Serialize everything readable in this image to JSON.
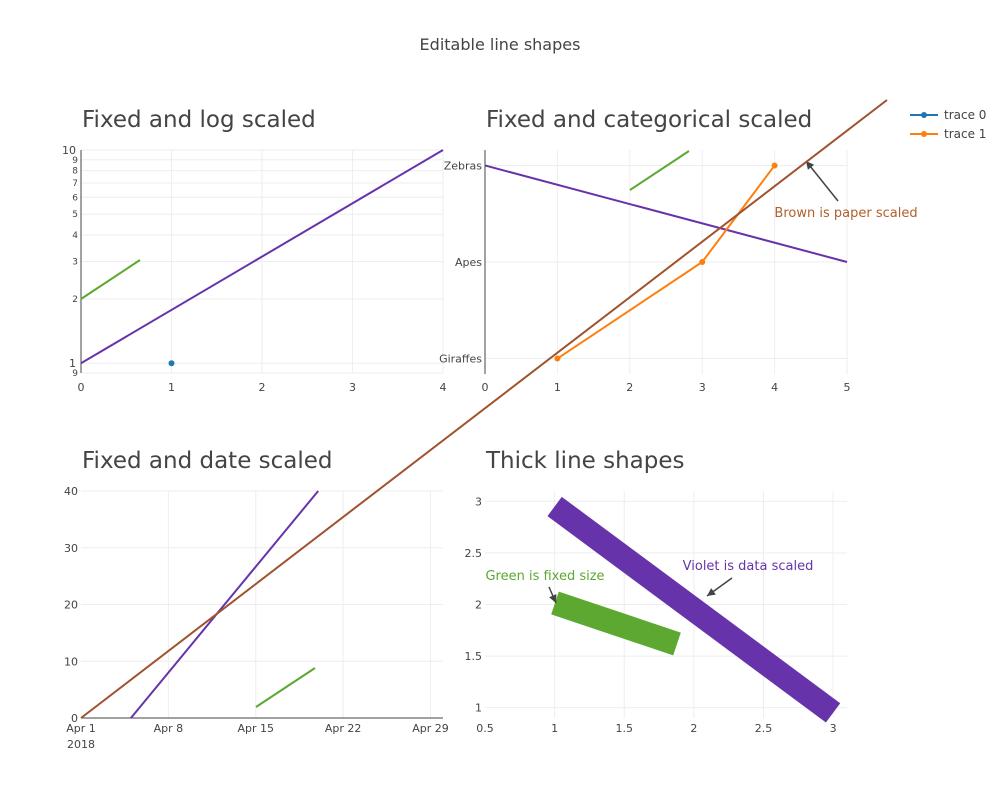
{
  "title": "Editable line shapes",
  "chart_data": [
    {
      "type": "scatter",
      "title": "Fixed and log scaled",
      "x_axis": {
        "type": "linear",
        "range": [
          0,
          4
        ],
        "ticks": [
          "0",
          "1",
          "2",
          "3",
          "4"
        ]
      },
      "y_axis": {
        "type": "log",
        "range": [
          0.9,
          10
        ],
        "major_ticks": [
          "1",
          "10"
        ],
        "minor_ticks": [
          "9",
          "2",
          "3",
          "4",
          "5",
          "6",
          "7",
          "8",
          "9"
        ]
      },
      "series": [
        {
          "points": [
            {
              "x": 1,
              "y": 1
            }
          ]
        }
      ],
      "shapes": [
        {
          "kind": "line",
          "sizing": "fixed",
          "color": "#5ca830"
        },
        {
          "kind": "line",
          "sizing": "data",
          "color": "#6633aa",
          "x0": 0,
          "y0": 1,
          "x1": 4,
          "y1": 10
        }
      ]
    },
    {
      "type": "line",
      "title": "Fixed and categorical scaled",
      "x_axis": {
        "type": "linear",
        "range": [
          0,
          5
        ],
        "ticks": [
          "0",
          "1",
          "2",
          "3",
          "4",
          "5"
        ]
      },
      "y_axis": {
        "type": "category",
        "categories": [
          "Giraffes",
          "Apes",
          "Zebras"
        ]
      },
      "series": [
        {
          "x": [
            1,
            3,
            4
          ],
          "y": [
            "Giraffes",
            "Apes",
            "Zebras"
          ]
        }
      ],
      "shapes": [
        {
          "kind": "line",
          "sizing": "fixed",
          "color": "#5ca830"
        },
        {
          "kind": "line",
          "sizing": "data",
          "color": "#6633aa",
          "x0": 0,
          "y0": "Zebras",
          "x1": 5,
          "y1": "Apes"
        }
      ],
      "annotations": [
        {
          "text": "Brown is paper scaled",
          "color": "#b05f2a"
        }
      ]
    },
    {
      "type": "scatter",
      "title": "Fixed and date scaled",
      "x_axis": {
        "type": "date",
        "range": [
          "2018-04-01",
          "2018-04-30"
        ],
        "ticks": [
          "Apr 1",
          "Apr 8",
          "Apr 15",
          "Apr 22",
          "Apr 29"
        ],
        "year_label": "2018"
      },
      "y_axis": {
        "type": "linear",
        "range": [
          0,
          40
        ],
        "ticks": [
          "0",
          "10",
          "20",
          "30",
          "40"
        ]
      },
      "shapes": [
        {
          "kind": "line",
          "sizing": "fixed",
          "color": "#5ca830"
        },
        {
          "kind": "line",
          "sizing": "data",
          "color": "#6633aa",
          "x0": "2018-04-05",
          "y0": 0,
          "x1": "2018-04-20",
          "y1": 40
        }
      ]
    },
    {
      "type": "scatter",
      "title": "Thick line shapes",
      "x_axis": {
        "type": "linear",
        "range": [
          0.5,
          3.1
        ],
        "ticks": [
          "0.5",
          "1",
          "1.5",
          "2",
          "2.5",
          "3"
        ]
      },
      "y_axis": {
        "type": "linear",
        "range": [
          0.9,
          3.1
        ],
        "ticks": [
          "1",
          "1.5",
          "2",
          "2.5",
          "3"
        ]
      },
      "shapes": [
        {
          "kind": "line",
          "sizing": "data",
          "color": "#6633aa",
          "x0": 1.0,
          "y0": 2.95,
          "x1": 3.0,
          "y1": 0.95
        },
        {
          "kind": "line",
          "sizing": "fixed",
          "color": "#5ca830"
        }
      ],
      "annotations": [
        {
          "text": "Green is fixed size",
          "color": "#5ca830"
        },
        {
          "text": "Violet is data scaled",
          "color": "#6633aa"
        }
      ]
    }
  ],
  "legend": {
    "position": "top-right",
    "items": [
      {
        "name": "trace 0",
        "color": "#1f77b4"
      },
      {
        "name": "trace 1",
        "color": "#ff7f0e"
      }
    ]
  },
  "paper_line_color": "#a0522d"
}
